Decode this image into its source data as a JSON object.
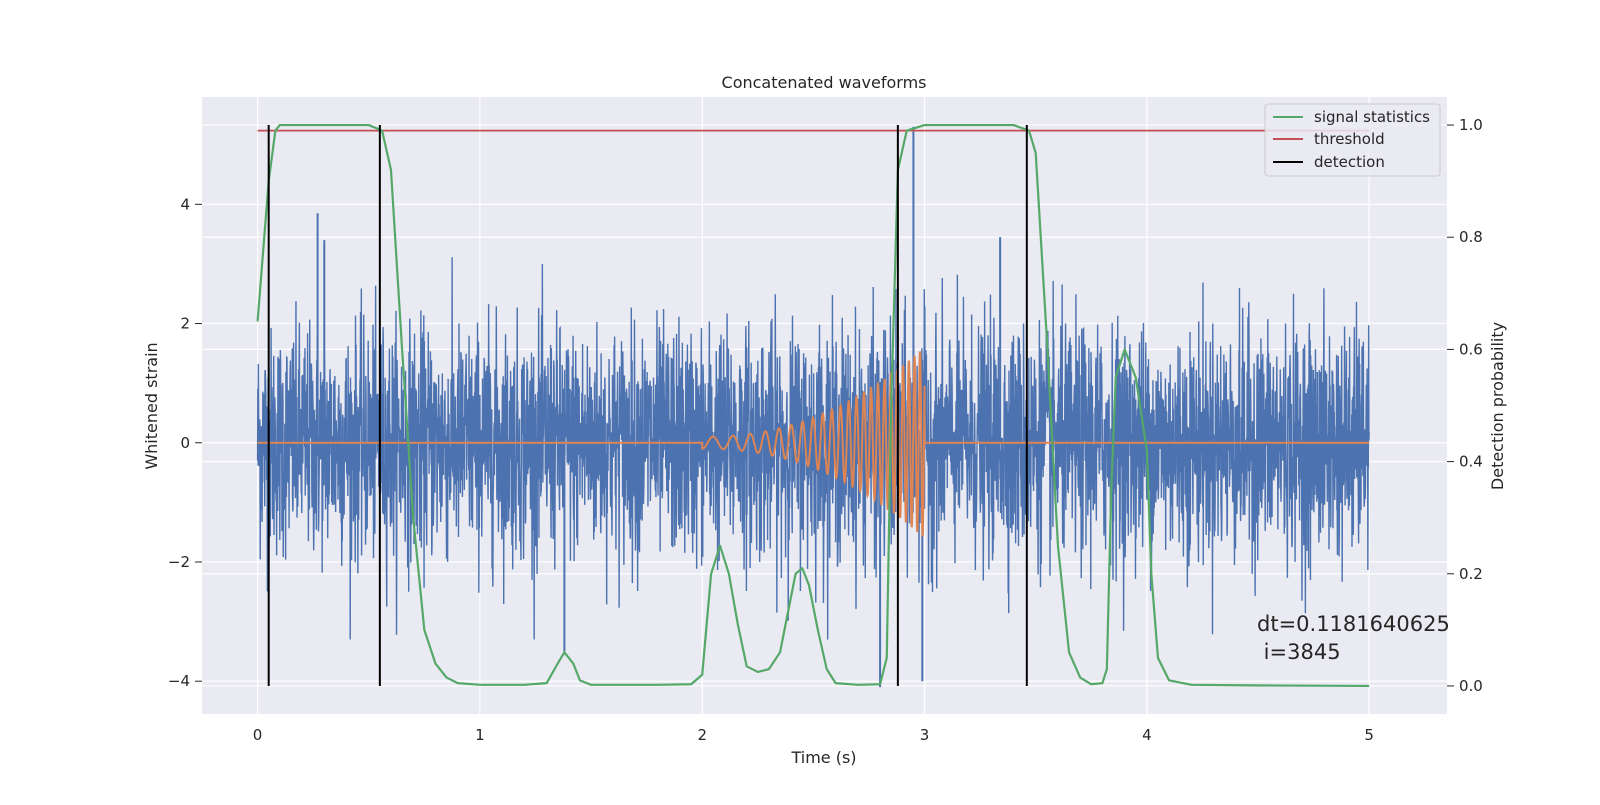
{
  "chart_data": {
    "type": "line",
    "title": "Concatenated waveforms",
    "xlabel": "Time (s)",
    "ylabel_left": "Whitened strain",
    "ylabel_right": "Detection probability",
    "xlim": [
      -0.25,
      5.35
    ],
    "ylim_left": [
      -4.55,
      5.8
    ],
    "ylim_right": [
      -0.05,
      1.05
    ],
    "x_ticks": [
      "0",
      "1",
      "2",
      "3",
      "4",
      "5"
    ],
    "y_left_ticks": [
      "−4",
      "−2",
      "0",
      "2",
      "4"
    ],
    "y_right_ticks": [
      "0.0",
      "0.2",
      "0.4",
      "0.6",
      "0.8",
      "1.0"
    ],
    "grid": true,
    "legend_position": "top-right",
    "series": [
      {
        "name": "strain",
        "axis": "left",
        "color": "#4c72b0",
        "description_points": {
          "x_range": [
            0,
            5
          ],
          "typical_amplitude": 1.5,
          "spikes": [
            [
              0.27,
              3.85
            ],
            [
              0.3,
              3.4
            ],
            [
              1.38,
              -3.5
            ],
            [
              2.8,
              -4.1
            ],
            [
              2.95,
              5.3
            ],
            [
              2.99,
              -4.0
            ],
            [
              3.34,
              3.45
            ]
          ]
        }
      },
      {
        "name": "injected chirp",
        "axis": "left",
        "color": "#dd8452",
        "x_range": [
          0,
          5
        ],
        "chirp_start": 2.0,
        "chirp_end": 3.0,
        "start_amplitude": 0.1,
        "end_amplitude": 1.6
      },
      {
        "name": "signal statistics",
        "axis": "right",
        "color": "#55a868",
        "x": [
          0.0,
          0.05,
          0.08,
          0.1,
          0.15,
          0.3,
          0.5,
          0.56,
          0.6,
          0.65,
          0.7,
          0.75,
          0.8,
          0.85,
          0.9,
          1.0,
          1.2,
          1.3,
          1.35,
          1.38,
          1.42,
          1.45,
          1.5,
          1.8,
          1.95,
          2.0,
          2.04,
          2.08,
          2.12,
          2.16,
          2.2,
          2.25,
          2.3,
          2.35,
          2.38,
          2.42,
          2.45,
          2.48,
          2.52,
          2.56,
          2.6,
          2.7,
          2.8,
          2.83,
          2.85,
          2.88,
          2.92,
          3.0,
          3.2,
          3.4,
          3.47,
          3.5,
          3.55,
          3.6,
          3.65,
          3.7,
          3.75,
          3.8,
          3.82,
          3.84,
          3.86,
          3.9,
          3.92,
          3.95,
          4.0,
          4.02,
          4.05,
          4.1,
          4.2,
          4.5,
          5.0
        ],
        "y": [
          0.65,
          0.9,
          0.99,
          1.0,
          1.0,
          1.0,
          1.0,
          0.99,
          0.92,
          0.6,
          0.3,
          0.1,
          0.04,
          0.015,
          0.005,
          0.002,
          0.002,
          0.005,
          0.04,
          0.06,
          0.04,
          0.01,
          0.002,
          0.002,
          0.003,
          0.02,
          0.2,
          0.25,
          0.2,
          0.11,
          0.035,
          0.025,
          0.03,
          0.06,
          0.12,
          0.2,
          0.21,
          0.18,
          0.1,
          0.03,
          0.005,
          0.002,
          0.003,
          0.05,
          0.5,
          0.92,
          0.99,
          1.0,
          1.0,
          1.0,
          0.99,
          0.95,
          0.62,
          0.25,
          0.06,
          0.015,
          0.003,
          0.005,
          0.03,
          0.35,
          0.55,
          0.6,
          0.58,
          0.55,
          0.42,
          0.2,
          0.05,
          0.01,
          0.002,
          0.001,
          0.0
        ]
      },
      {
        "name": "threshold",
        "axis": "right",
        "color": "#c44e52",
        "x": [
          0.0,
          5.0
        ],
        "y": [
          0.99,
          0.99
        ]
      },
      {
        "name": "detection",
        "axis": "right",
        "color": "#000000",
        "vlines": [
          0.05,
          0.55,
          2.88,
          3.46
        ]
      }
    ],
    "legend": [
      {
        "label": "signal statistics",
        "color": "#55a868"
      },
      {
        "label": "threshold",
        "color": "#c44e52"
      },
      {
        "label": "detection",
        "color": "#000000"
      }
    ],
    "annotation": {
      "line1": "dt=0.1181640625",
      "line2": " i=3845"
    }
  }
}
